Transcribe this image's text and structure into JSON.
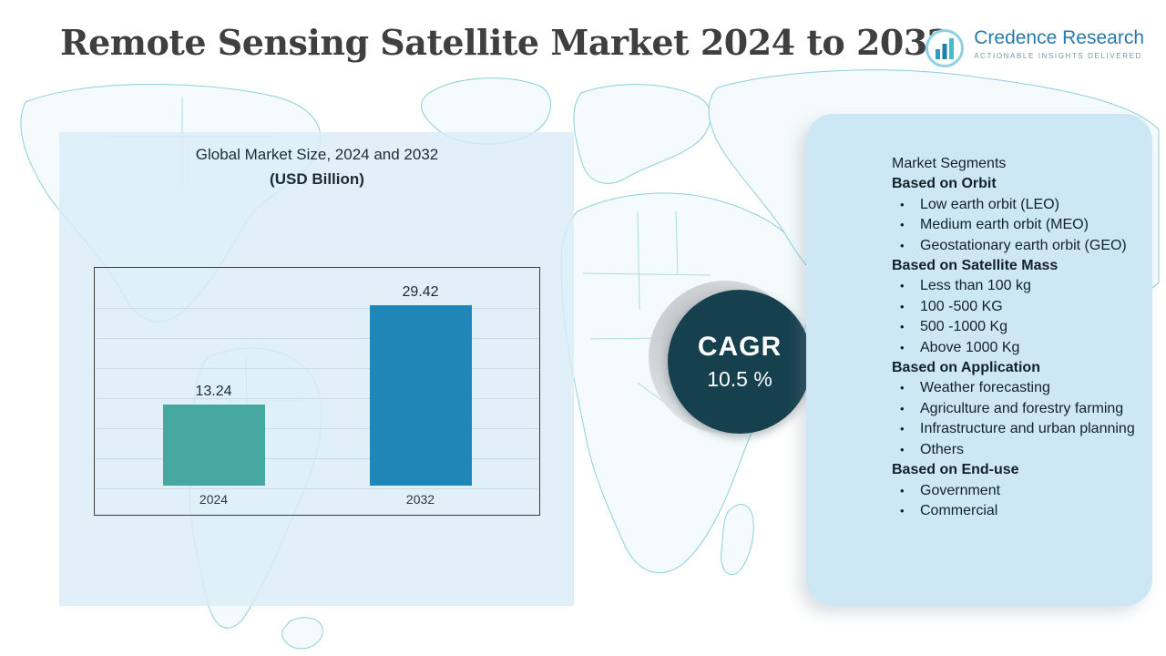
{
  "header": {
    "title": "Remote Sensing Satellite Market 2024 to 2032",
    "logo": {
      "name": "Credence Research",
      "tagline": "Actionable Insights Delivered"
    }
  },
  "chart": {
    "title": "Global Market Size,  2024 and 2032",
    "subtitle": "(USD Billion)"
  },
  "chart_data": {
    "type": "bar",
    "title": "Global Market Size, 2024 and 2032 (USD Billion)",
    "categories": [
      "2024",
      "2032"
    ],
    "values": [
      13.24,
      29.42
    ],
    "value_labels": [
      "13.24",
      "29.42"
    ],
    "xlabel": "",
    "ylabel": "USD Billion",
    "ylim": [
      0,
      32
    ],
    "grid": true,
    "legend": "none",
    "bar_colors": [
      "#47a8a2",
      "#1e87b8"
    ]
  },
  "cagr": {
    "label": "CAGR",
    "value": "10.5 %"
  },
  "segments": {
    "title": "Market Segments",
    "groups": [
      {
        "heading": "Based on Orbit",
        "items": [
          "Low earth orbit (LEO)",
          "Medium earth orbit (MEO)",
          "Geostationary earth orbit (GEO)"
        ]
      },
      {
        "heading": "Based on Satellite Mass",
        "items": [
          "Less than 100 kg",
          "100 -500 KG",
          "500 -1000 Kg",
          "Above 1000 Kg"
        ]
      },
      {
        "heading": "Based on Application",
        "items": [
          "Weather forecasting",
          "Agriculture and forestry farming",
          "Infrastructure and urban planning",
          "Others"
        ]
      },
      {
        "heading": "Based on End-use",
        "items": [
          "Government",
          "Commercial"
        ]
      }
    ]
  },
  "colors": {
    "bar_2024": "#47a8a2",
    "bar_2032": "#1e87b8",
    "cagr_circle": "#17404e",
    "segments_panel": "#cde7f4",
    "logo_blue": "#2879ad",
    "map_stroke": "#8ccfda"
  }
}
